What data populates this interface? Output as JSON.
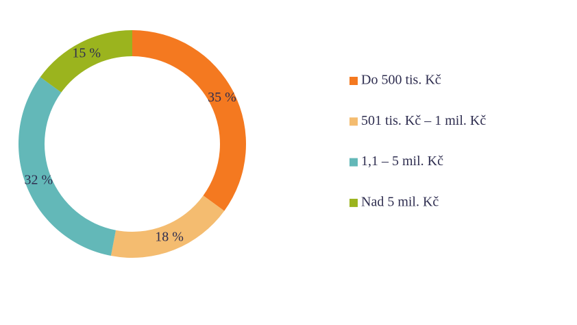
{
  "chart_data": {
    "type": "donut",
    "categories": [
      "Do 500 tis. Kč",
      "501 tis. Kč – 1 mil. Kč",
      "1,1 – 5 mil. Kč",
      "Nad 5 mil. Kč"
    ],
    "values": [
      35,
      18,
      32,
      15
    ],
    "value_labels": [
      "35 %",
      "18 %",
      "32 %",
      "15 %"
    ],
    "colors": [
      "#f47920",
      "#f4bc70",
      "#63b8b8",
      "#9bb41e"
    ]
  }
}
